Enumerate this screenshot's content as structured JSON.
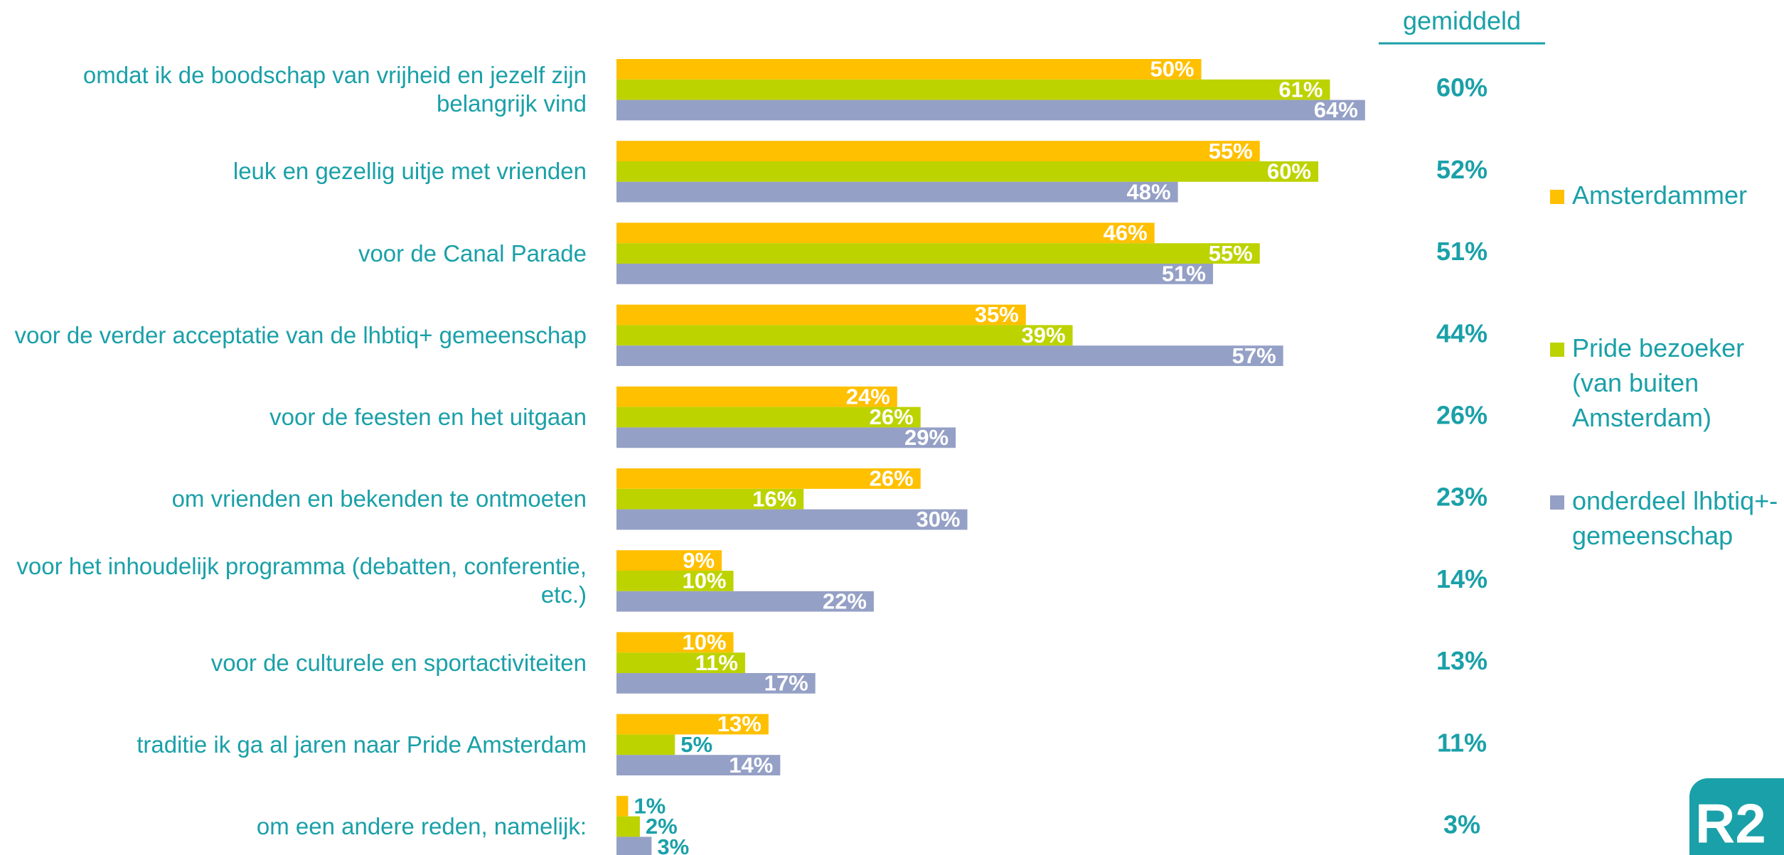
{
  "chart_data": {
    "type": "bar",
    "orientation": "horizontal",
    "categories": [
      "omdat ik de boodschap van vrijheid en jezelf zijn belangrijk vind",
      "leuk en gezellig uitje met vrienden",
      "voor de Canal Parade",
      "voor de verder acceptatie van de lhbtiq+ gemeenschap",
      "voor de feesten en het uitgaan",
      "om vrienden en bekenden te ontmoeten",
      "voor het inhoudelijk programma (debatten, conferentie, etc.)",
      "voor de culturele en sportactiviteiten",
      "traditie ik ga al jaren naar Pride Amsterdam",
      "om een andere reden, namelijk:"
    ],
    "series": [
      {
        "name": "Amsterdammer",
        "color": "#ffc000",
        "values": [
          50,
          55,
          46,
          35,
          24,
          26,
          9,
          10,
          13,
          1
        ],
        "value_labels": [
          "50%",
          "55%",
          "46%",
          "35%",
          "24%",
          "26%",
          "9%",
          "10%",
          "13%",
          "1%"
        ]
      },
      {
        "name": "Pride bezoeker (van buiten Amsterdam)",
        "color": "#bdd300",
        "values": [
          61,
          60,
          55,
          39,
          26,
          16,
          10,
          11,
          5,
          2
        ],
        "value_labels": [
          "61%",
          "60%",
          "55%",
          "39%",
          "26%",
          "16%",
          "10%",
          "11%",
          "5%",
          "2%"
        ]
      },
      {
        "name": "onderdeel lhbtiq+-gemeenschap",
        "color": "#95a0c6",
        "values": [
          64,
          48,
          51,
          57,
          29,
          30,
          22,
          17,
          14,
          3
        ],
        "value_labels": [
          "64%",
          "48%",
          "51%",
          "57%",
          "29%",
          "30%",
          "22%",
          "17%",
          "14%",
          "3%"
        ]
      }
    ],
    "xlim": [
      0,
      100
    ],
    "averages": {
      "label": "gemiddeld",
      "values": [
        60,
        52,
        51,
        44,
        26,
        23,
        14,
        13,
        11,
        3
      ],
      "value_labels": [
        "60%",
        "52%",
        "51%",
        "44%",
        "26%",
        "23%",
        "14%",
        "13%",
        "11%",
        "3%"
      ]
    },
    "logo": "R2"
  }
}
